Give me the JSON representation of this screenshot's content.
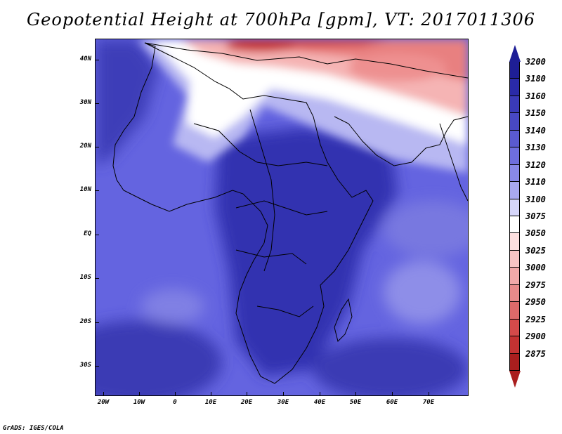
{
  "title": "Geopotential Height at 700hPa [gpm], VT: 2017011306",
  "credit": "GrADS: IGES/COLA",
  "y_axis_labels": [
    "40N",
    "30N",
    "20N",
    "10N",
    "EQ",
    "10S",
    "20S",
    "30S"
  ],
  "x_axis_labels": [
    "20W",
    "10W",
    "0",
    "10E",
    "20E",
    "30E",
    "40E",
    "50E",
    "60E",
    "70E"
  ],
  "colorbar": {
    "levels": [
      "3200",
      "3180",
      "3160",
      "3150",
      "3140",
      "3130",
      "3120",
      "3110",
      "3100",
      "3075",
      "3050",
      "3025",
      "3000",
      "2975",
      "2950",
      "2925",
      "2900",
      "2875"
    ],
    "colors": [
      "#1e1e96",
      "#2a2aa8",
      "#3a3ab8",
      "#4848c4",
      "#5a5ad0",
      "#6e6ede",
      "#8888e8",
      "#a8a8f0",
      "#d6d6fa",
      "#ffffff",
      "#fde0e0",
      "#f8c4c4",
      "#f1a8a8",
      "#e88a8a",
      "#de6a6a",
      "#d44a4a",
      "#c43232",
      "#aa1e1e"
    ]
  }
}
